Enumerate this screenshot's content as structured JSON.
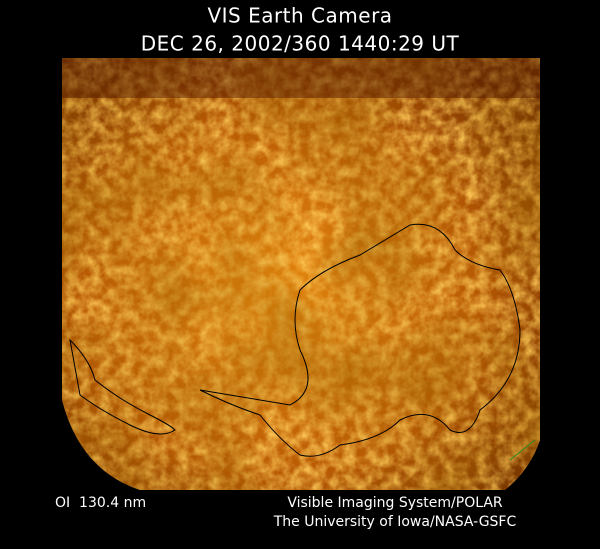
{
  "header": {
    "title": "VIS Earth Camera",
    "timestamp": "DEC 26, 2002/360 1440:29 UT"
  },
  "footer": {
    "filter": "OI  130.4 nm",
    "instrument": "Visible Imaging System/POLAR",
    "institution": "The University of Iowa/NASA-GSFC"
  }
}
